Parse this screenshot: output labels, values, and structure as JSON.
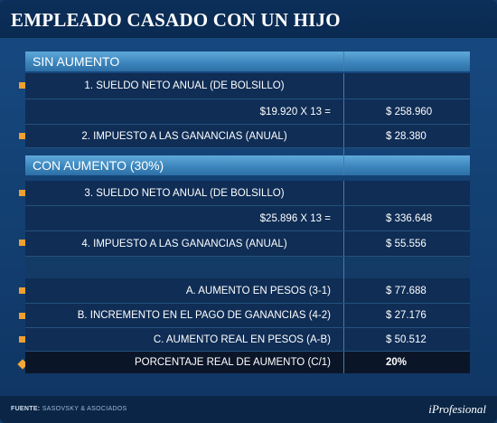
{
  "title": "EMPLEADO CASADO CON UN HIJO",
  "sections": {
    "sin_aumento": "SIN AUMENTO",
    "con_aumento": "CON AUMENTO (30%)"
  },
  "rows": {
    "r1": {
      "label": "1. SUELDO NETO ANUAL (DE BOLSILLO)",
      "value": ""
    },
    "r1b": {
      "label": "$19.920 X 13 =",
      "value": "$ 258.960"
    },
    "r2": {
      "label": "2. IMPUESTO A LAS GANANCIAS (ANUAL)",
      "value": "$ 28.380"
    },
    "r3": {
      "label": "3. SUELDO NETO ANUAL (DE BOLSILLO)",
      "value": ""
    },
    "r3b": {
      "label": "$25.896 X 13 =",
      "value": "$ 336.648"
    },
    "r4": {
      "label": "4. IMPUESTO A LAS GANANCIAS (ANUAL)",
      "value": "$ 55.556"
    },
    "ra": {
      "label": "A. AUMENTO EN PESOS (3-1)",
      "value": "$ 77.688"
    },
    "rb": {
      "label": "B. INCREMENTO EN EL PAGO DE GANANCIAS (4-2)",
      "value": "$ 27.176"
    },
    "rc": {
      "label": "C. AUMENTO REAL EN PESOS (A-B)",
      "value": "$ 50.512"
    },
    "rp": {
      "label": "PORCENTAJE REAL DE AUMENTO (C/1)",
      "value": "20%"
    }
  },
  "footer": {
    "source_label": "FUENTE:",
    "source_text": "SASOVSKY & ASOCIADOS",
    "brand": "iProfesional"
  },
  "colors": {
    "accent_bullet": "#f0a030",
    "section_bar": "#3d86bd",
    "background": "#174a82"
  }
}
